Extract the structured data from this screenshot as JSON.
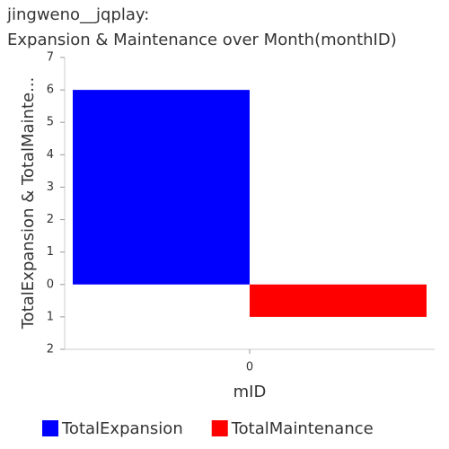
{
  "chart_data": {
    "type": "bar",
    "title": [
      "jingweno__jqplay:",
      "Expansion & Maintenance over Month(monthID)"
    ],
    "x_label": "mID",
    "y_label": "TotalExpansion & TotalMainte...",
    "categories": [
      "0"
    ],
    "series": [
      {
        "name": "TotalExpansion",
        "color": "#0000ff",
        "values": [
          6
        ]
      },
      {
        "name": "TotalMaintenance",
        "color": "#ff0000",
        "values": [
          -1
        ]
      }
    ],
    "ylim": [
      -2,
      7
    ],
    "yticks": [
      {
        "value": -2,
        "label": "2"
      },
      {
        "value": -1,
        "label": "1"
      },
      0,
      1,
      2,
      3,
      4,
      5,
      6,
      7
    ],
    "grid": false
  }
}
